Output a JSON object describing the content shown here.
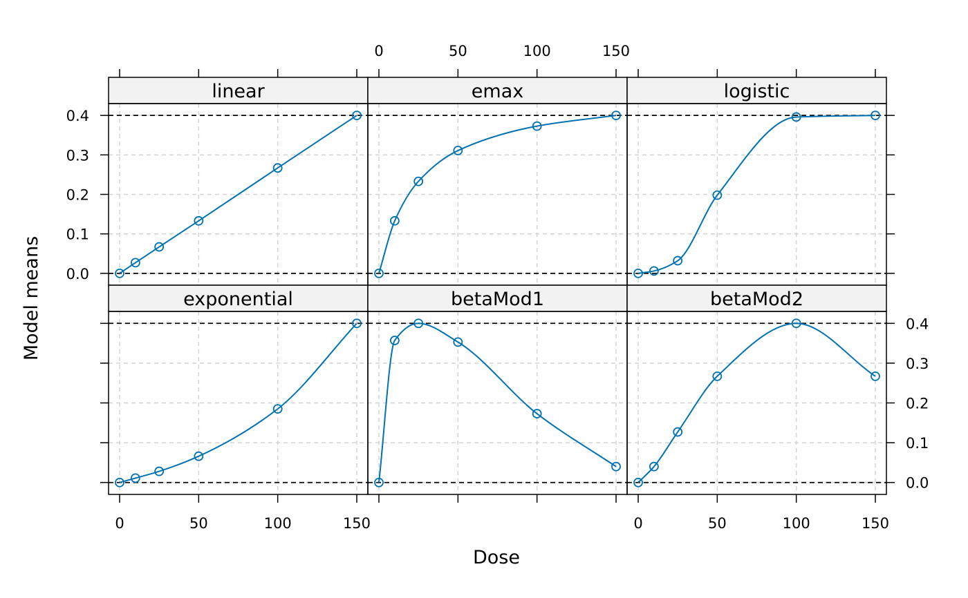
{
  "chart_data": {
    "type": "line",
    "layout": "trellis 3 columns x 2 rows",
    "xlabel": "Dose",
    "ylabel": "Model means",
    "x": [
      0,
      10,
      25,
      50,
      100,
      150
    ],
    "xlim": [
      -7,
      157
    ],
    "ylim": [
      -0.03,
      0.43
    ],
    "xticks": [
      0,
      50,
      100,
      150
    ],
    "yticks": [
      0.0,
      0.1,
      0.2,
      0.3,
      0.4
    ],
    "ytick_labels": [
      "0.0",
      "0.1",
      "0.2",
      "0.3",
      "0.4"
    ],
    "reference_lines": [
      0.0,
      0.4
    ],
    "grid": true,
    "line_color": "#0072B2",
    "point_marker": "open circle",
    "panels": [
      {
        "name": "linear",
        "values": [
          0.0,
          0.027,
          0.067,
          0.133,
          0.267,
          0.4
        ]
      },
      {
        "name": "emax",
        "values": [
          0.0,
          0.133,
          0.233,
          0.311,
          0.373,
          0.4
        ]
      },
      {
        "name": "logistic",
        "values": [
          0.0,
          0.006,
          0.032,
          0.198,
          0.396,
          0.4
        ]
      },
      {
        "name": "exponential",
        "values": [
          0.0,
          0.011,
          0.028,
          0.066,
          0.185,
          0.4
        ]
      },
      {
        "name": "betaMod1",
        "values": [
          0.0,
          0.357,
          0.4,
          0.353,
          0.173,
          0.04
        ]
      },
      {
        "name": "betaMod2",
        "values": [
          0.0,
          0.04,
          0.127,
          0.267,
          0.4,
          0.267
        ]
      }
    ]
  }
}
